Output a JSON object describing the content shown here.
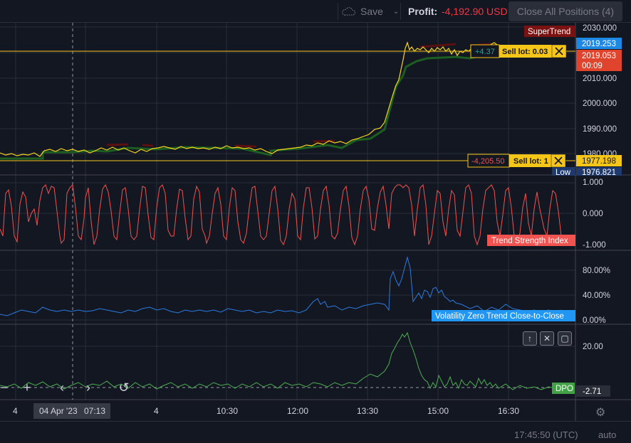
{
  "toolbar": {
    "save_label": "Save",
    "profit_label": "Profit:",
    "profit_value": "-4,192.90 USD",
    "close_all_label": "Close All Positions (4)"
  },
  "price_pane": {
    "y_ticks": [
      "2030.000",
      "2010.000",
      "2000.000",
      "1990.000",
      "1980.000"
    ],
    "indicator_label": "SuperTrend",
    "badges": {
      "last_price": "2019.253",
      "current_price": "2019.053",
      "countdown": "00:09",
      "sell_price": "1977.198",
      "low_label": "Low",
      "low_value": "1976.821"
    },
    "positions": [
      {
        "pnl": "+4.37",
        "label": "Sell lot: 0.03",
        "close_icon": "close-icon"
      },
      {
        "pnl": "-4,205.50",
        "label": "Sell lot: 1",
        "close_icon": "close-icon"
      }
    ]
  },
  "tsi_pane": {
    "title": "Trend Strength Index",
    "y_ticks": [
      "1.000",
      "0.000",
      "-1.000"
    ]
  },
  "vol_pane": {
    "title": "Volatility Zero Trend Close-to-Close",
    "y_ticks": [
      "80.00%",
      "40.00%",
      "0.00%"
    ]
  },
  "dpo_pane": {
    "title": "DPO",
    "y_ticks": [
      "20.00"
    ],
    "current_value": "-2.71",
    "controls": [
      "arrow-up-icon",
      "close-icon",
      "maximize-icon"
    ]
  },
  "time_axis": {
    "ticks": [
      "4",
      "4",
      "10:30",
      "12:00",
      "13:30",
      "15:00",
      "16:30"
    ],
    "crosshair_date": "04 Apr '23",
    "crosshair_time": "07:13"
  },
  "nav_controls": [
    "minus-icon",
    "plus-icon",
    "chevron-left-icon",
    "chevron-right-icon",
    "reset-icon"
  ],
  "status": {
    "clock": "17:45:50 (UTC)",
    "scale_mode": "auto"
  },
  "colors": {
    "background": "#131722",
    "grid": "#2a2e39",
    "price_line": "#f7d51f",
    "supertrend_up": "#1b5e20",
    "supertrend_down": "#5d1010",
    "tsi": "#f05350",
    "volatility": "#2a7be0",
    "dpo": "#4caf50",
    "position_line": "#f5c518",
    "loss": "#f23645",
    "gain": "#26a69a"
  }
}
